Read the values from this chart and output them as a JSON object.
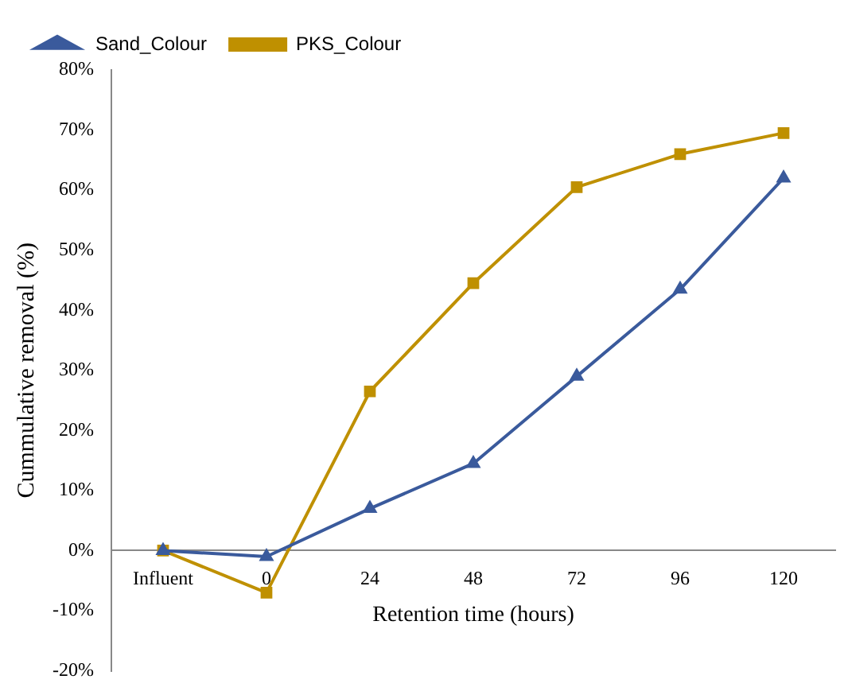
{
  "chart_data": {
    "type": "line",
    "xlabel": "Retention time (hours)",
    "ylabel": "Cummulative removal (%)",
    "categories": [
      "Influent",
      "0",
      "24",
      "48",
      "72",
      "96",
      "120"
    ],
    "series": [
      {
        "name": "Sand_Colour",
        "color": "#3a5a9c",
        "marker": "triangle",
        "values": [
          0,
          -1,
          7,
          14.5,
          29,
          43.5,
          62
        ]
      },
      {
        "name": "PKS_Colour",
        "color": "#bf9000",
        "marker": "square",
        "values": [
          0,
          -7,
          26.5,
          44.5,
          60.5,
          66,
          69.5
        ]
      }
    ],
    "ylim": [
      -20,
      80
    ],
    "yticks": [
      {
        "value": -20,
        "label": "-20%"
      },
      {
        "value": -10,
        "label": "-10%"
      },
      {
        "value": 0,
        "label": "0%"
      },
      {
        "value": 10,
        "label": "10%"
      },
      {
        "value": 20,
        "label": "20%"
      },
      {
        "value": 30,
        "label": "30%"
      },
      {
        "value": 40,
        "label": "40%"
      },
      {
        "value": 50,
        "label": "50%"
      },
      {
        "value": 60,
        "label": "60%"
      },
      {
        "value": 70,
        "label": "70%"
      },
      {
        "value": 80,
        "label": "80%"
      }
    ],
    "grid": false,
    "legend": "top left",
    "line_style": "solid"
  }
}
